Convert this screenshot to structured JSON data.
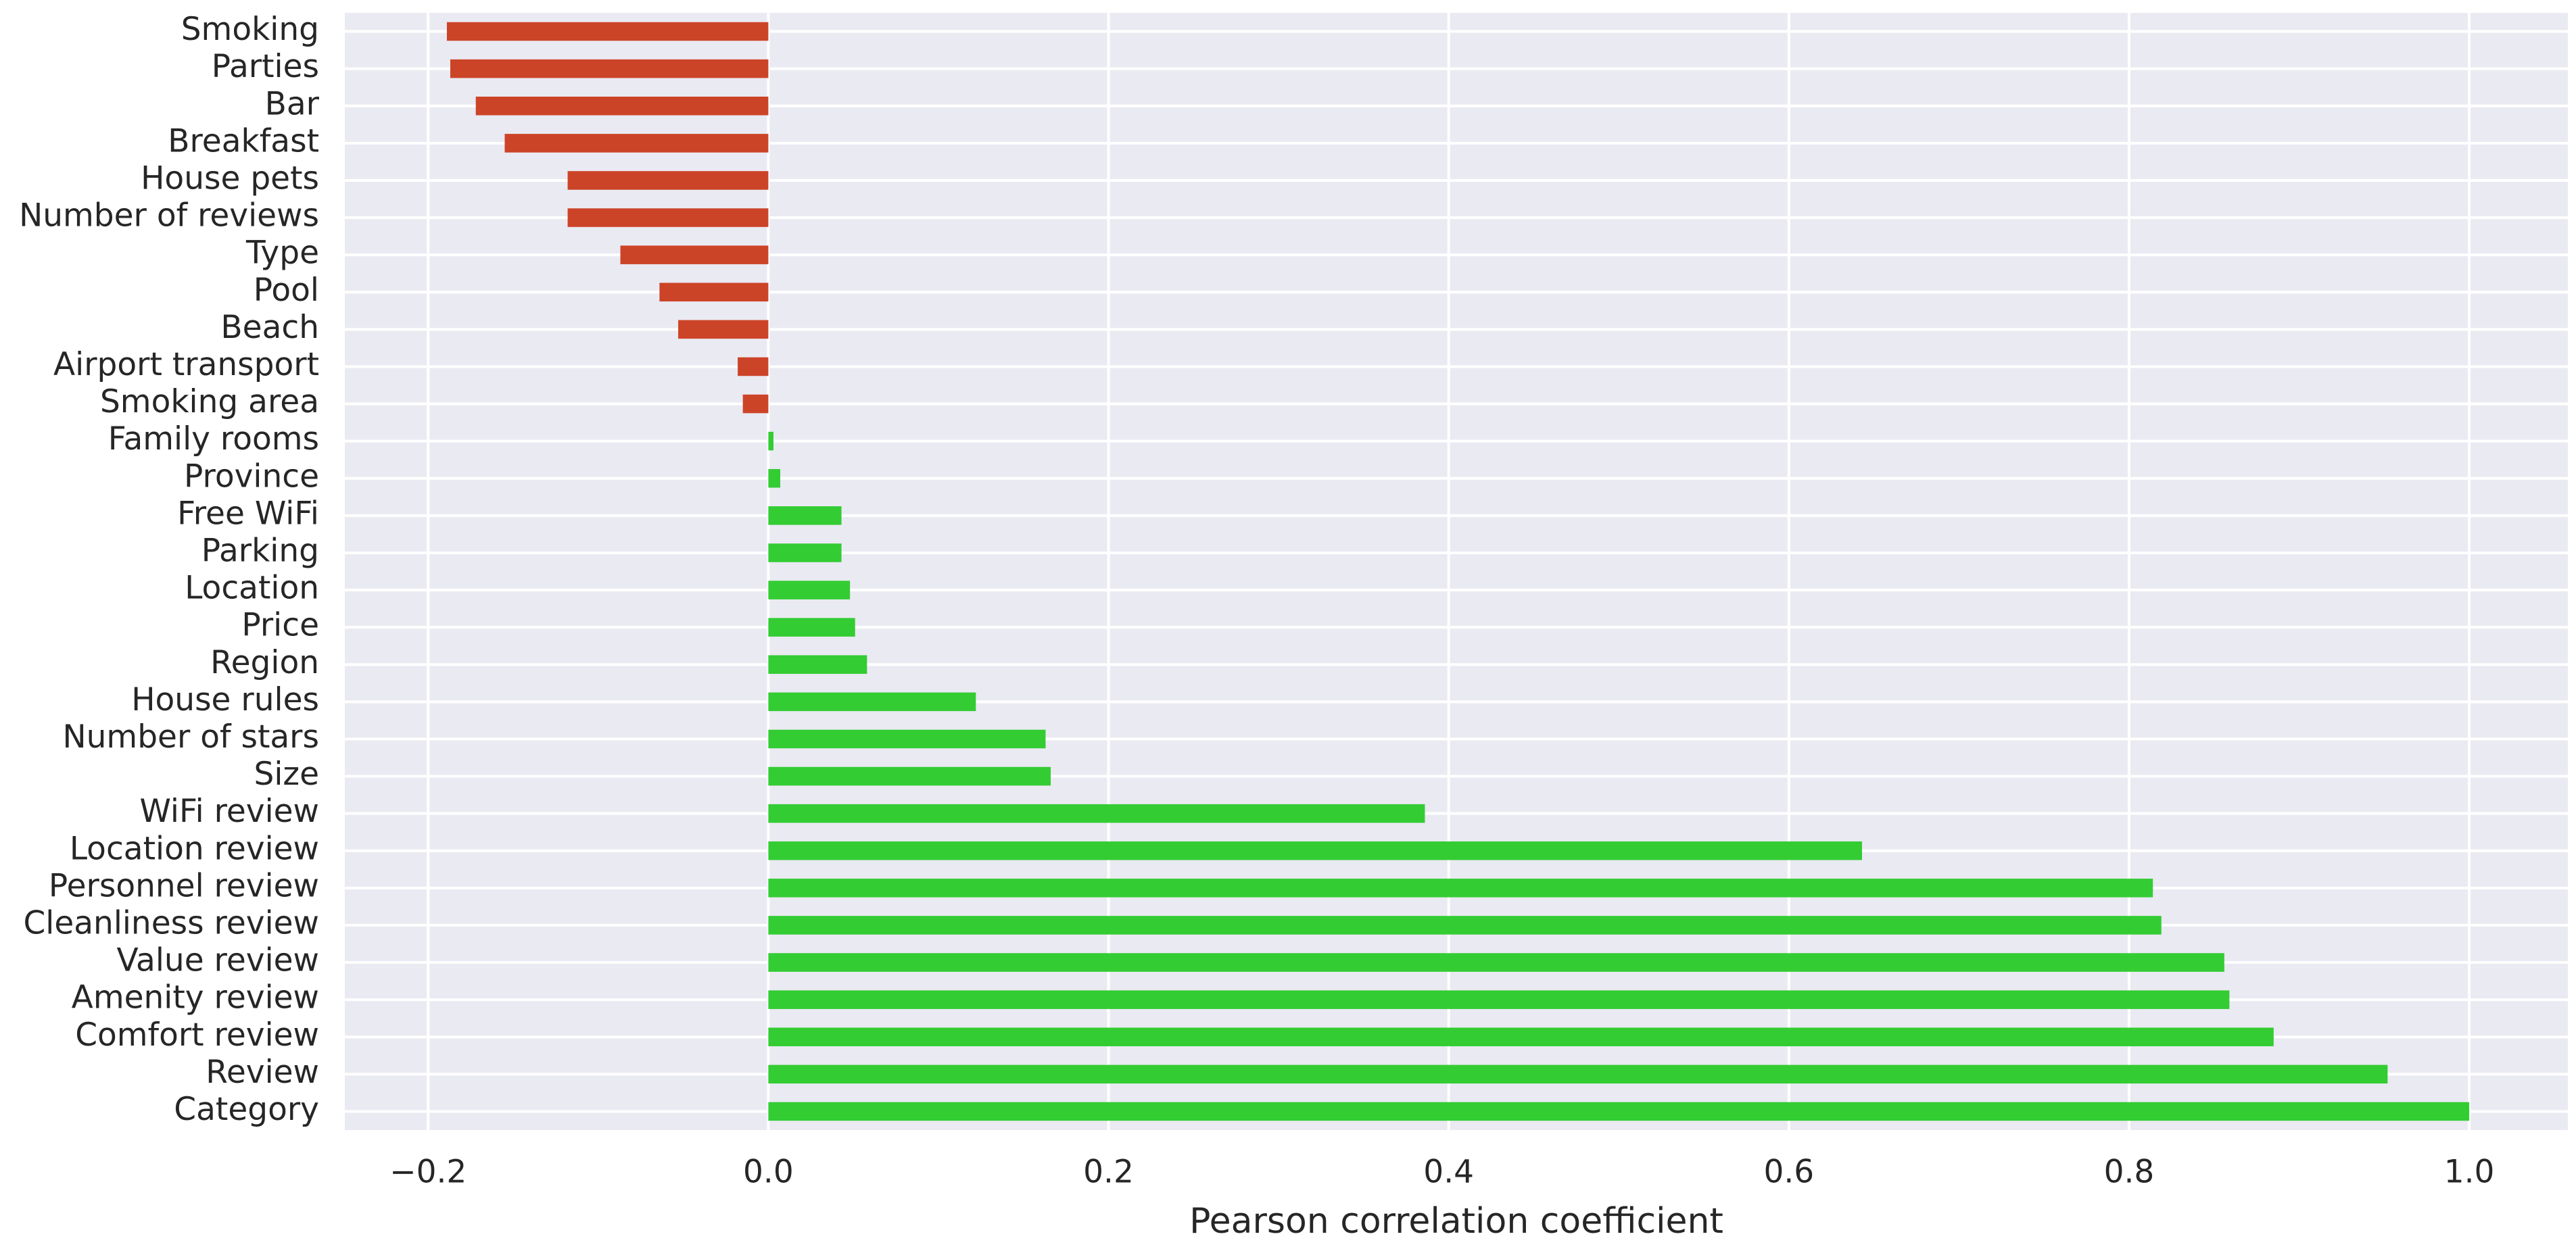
{
  "chart_data": {
    "type": "barh",
    "xlabel": "Pearson correlation coefficient",
    "categories": [
      "Smoking",
      "Parties",
      "Bar",
      "Breakfast",
      "House pets",
      "Number of reviews",
      "Type",
      "Pool",
      "Beach",
      "Airport transport",
      "Smoking area",
      "Family rooms",
      "Province",
      "Free WiFi",
      "Parking",
      "Location",
      "Price",
      "Region",
      "House rules",
      "Number of stars",
      "Size",
      "WiFi review",
      "Location review",
      "Personnel review",
      "Cleanliness review",
      "Value review",
      "Amenity review",
      "Comfort review",
      "Review",
      "Category"
    ],
    "values": [
      -0.189,
      -0.187,
      -0.172,
      -0.155,
      -0.118,
      -0.118,
      -0.087,
      -0.064,
      -0.053,
      -0.018,
      -0.015,
      0.003,
      0.007,
      0.043,
      0.043,
      0.048,
      0.051,
      0.058,
      0.122,
      0.163,
      0.166,
      0.386,
      0.643,
      0.814,
      0.819,
      0.856,
      0.859,
      0.885,
      0.952,
      1.0
    ],
    "color_negative": "#cc4428",
    "color_positive": "#33cc33",
    "xlim": [
      -0.249,
      1.058
    ],
    "xticks": [
      {
        "value": -0.2,
        "label": "−0.2"
      },
      {
        "value": 0.0,
        "label": "0.0"
      },
      0.2,
      0.4,
      0.6,
      0.8,
      {
        "value": 1.0,
        "label": "1.0"
      }
    ],
    "grid": true,
    "background": "#eaeaf2"
  }
}
